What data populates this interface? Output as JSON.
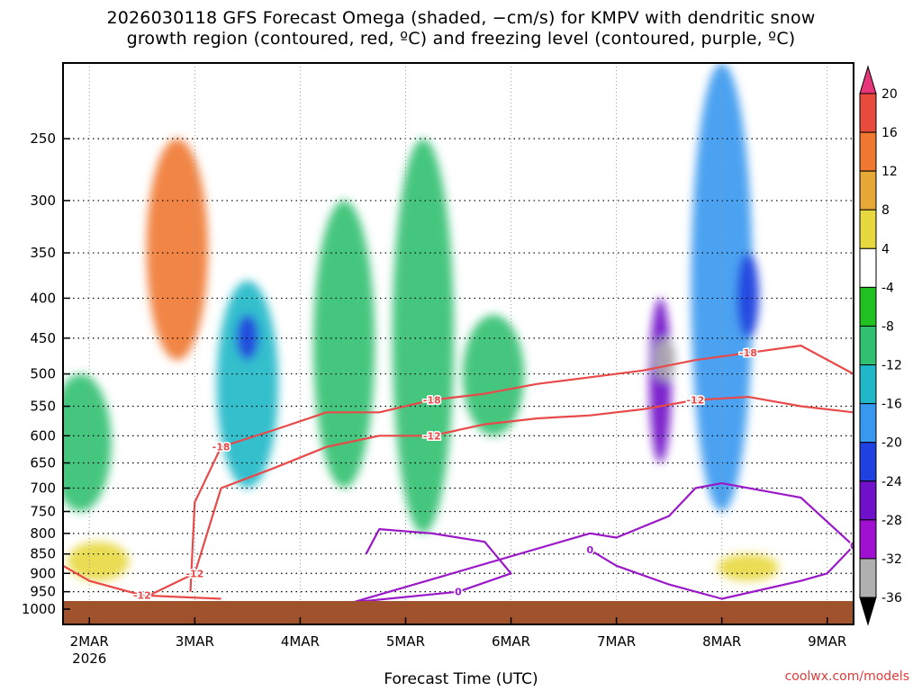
{
  "chart_data": {
    "type": "heatmap",
    "title": "2026030118 GFS Forecast Omega (shaded, −cm/s) for KMPV with dendritic snow",
    "subtitle": "growth region (contoured, red, ºC) and freezing level (contoured, purple, ºC)",
    "xlabel": "Forecast Time (UTC)",
    "ylabel": "",
    "y_axis": {
      "scale": "log",
      "reversed": true,
      "range": [
        200,
        1000
      ],
      "ticks": [
        250,
        300,
        350,
        400,
        450,
        500,
        550,
        600,
        650,
        700,
        750,
        800,
        850,
        900,
        950,
        1000
      ]
    },
    "x_axis": {
      "range": [
        "2026-03-01 18",
        "2026-03-09 06"
      ],
      "ticks": [
        {
          "label": "2MAR",
          "sub": "2026",
          "time": "2026-03-02 00"
        },
        {
          "label": "3MAR",
          "sub": "",
          "time": "2026-03-03 00"
        },
        {
          "label": "4MAR",
          "sub": "",
          "time": "2026-03-04 00"
        },
        {
          "label": "5MAR",
          "sub": "",
          "time": "2026-03-05 00"
        },
        {
          "label": "6MAR",
          "sub": "",
          "time": "2026-03-06 00"
        },
        {
          "label": "7MAR",
          "sub": "",
          "time": "2026-03-07 00"
        },
        {
          "label": "8MAR",
          "sub": "",
          "time": "2026-03-08 00"
        },
        {
          "label": "9MAR",
          "sub": "",
          "time": "2026-03-09 00"
        }
      ]
    },
    "grid": true,
    "colorbar": {
      "placement": "right",
      "levels": [
        20,
        16,
        12,
        8,
        4,
        -4,
        -8,
        -12,
        -16,
        -20,
        -24,
        -28,
        -32,
        -36
      ],
      "colors": [
        "#e8367a",
        "#e84a3c",
        "#f07830",
        "#e8a838",
        "#e8d840",
        "#ffffff",
        "#20c020",
        "#30c070",
        "#20b8c8",
        "#3898f0",
        "#2040e0",
        "#7010c8",
        "#a010d0",
        "#b0b0b0",
        "#000000"
      ]
    },
    "shading_regions": [
      {
        "t": "2026-03-01 22",
        "p": [
          500,
          750
        ],
        "omega": -10
      },
      {
        "t": "2026-03-03 12",
        "p": [
          380,
          700
        ],
        "omega": -16
      },
      {
        "t": "2026-03-03 12",
        "p": [
          420,
          480
        ],
        "omega": -22
      },
      {
        "t": "2026-03-04 10",
        "p": [
          300,
          700
        ],
        "omega": -9
      },
      {
        "t": "2026-03-05 04",
        "p": [
          250,
          800
        ],
        "omega": -9
      },
      {
        "t": "2026-03-05 20",
        "p": [
          420,
          600
        ],
        "omega": -12
      },
      {
        "t": "2026-03-07 10",
        "p": [
          400,
          650
        ],
        "omega": -28
      },
      {
        "t": "2026-03-07 11",
        "p": [
          450,
          510
        ],
        "omega": -36
      },
      {
        "t": "2026-03-08 00",
        "p": [
          200,
          750
        ],
        "omega": -18
      },
      {
        "t": "2026-03-08 06",
        "p": [
          350,
          450
        ],
        "omega": -24
      },
      {
        "t": "2026-03-02 20",
        "p": [
          250,
          480
        ],
        "omega": 12
      },
      {
        "t": "2026-03-02 02",
        "p": [
          820,
          920
        ],
        "omega": 6
      },
      {
        "t": "2026-03-08 06",
        "p": [
          850,
          920
        ],
        "omega": 6
      }
    ],
    "contours": [
      {
        "name": "-18",
        "color": "#e84a4a",
        "label": "-18",
        "label_points": [
          2,
          6,
          12
        ],
        "points": [
          [
            "2026-03-02 23",
            950
          ],
          [
            "2026-03-03 00",
            730
          ],
          [
            "2026-03-03 06",
            620
          ],
          [
            "2026-03-03 18",
            590
          ],
          [
            "2026-03-04 06",
            560
          ],
          [
            "2026-03-04 18",
            560
          ],
          [
            "2026-03-05 06",
            540
          ],
          [
            "2026-03-05 18",
            530
          ],
          [
            "2026-03-06 06",
            515
          ],
          [
            "2026-03-06 18",
            505
          ],
          [
            "2026-03-07 06",
            495
          ],
          [
            "2026-03-07 18",
            480
          ],
          [
            "2026-03-08 06",
            470
          ],
          [
            "2026-03-08 18",
            460
          ],
          [
            "2026-03-09 06",
            500
          ]
        ]
      },
      {
        "name": "-12",
        "color": "#e84a4a",
        "label": "-12",
        "label_points": [
          1,
          6,
          11
        ],
        "points": [
          [
            "2026-03-02 12",
            970
          ],
          [
            "2026-03-03 00",
            900
          ],
          [
            "2026-03-03 06",
            700
          ],
          [
            "2026-03-03 18",
            660
          ],
          [
            "2026-03-04 06",
            620
          ],
          [
            "2026-03-04 18",
            600
          ],
          [
            "2026-03-05 06",
            600
          ],
          [
            "2026-03-05 18",
            580
          ],
          [
            "2026-03-06 06",
            570
          ],
          [
            "2026-03-06 18",
            565
          ],
          [
            "2026-03-07 06",
            555
          ],
          [
            "2026-03-07 18",
            540
          ],
          [
            "2026-03-08 06",
            535
          ],
          [
            "2026-03-08 18",
            550
          ],
          [
            "2026-03-09 06",
            560
          ]
        ]
      },
      {
        "name": "-12 surface",
        "color": "#e84a4a",
        "label": "-12",
        "label_points": [
          2
        ],
        "points": [
          [
            "2026-03-01 18",
            880
          ],
          [
            "2026-03-02 00",
            920
          ],
          [
            "2026-03-02 12",
            960
          ],
          [
            "2026-03-02 21",
            965
          ],
          [
            "2026-03-03 06",
            970
          ]
        ]
      },
      {
        "name": "0 freezing",
        "color": "#9a18c8",
        "label": "0",
        "label_points": [
          5,
          13,
          19
        ],
        "points": [
          [
            "2026-03-04 15",
            850
          ],
          [
            "2026-03-04 18",
            790
          ],
          [
            "2026-03-05 06",
            800
          ],
          [
            "2026-03-05 18",
            820
          ],
          [
            "2026-03-06 00",
            900
          ],
          [
            "2026-03-05 12",
            950
          ],
          [
            "2026-03-04 12",
            980
          ],
          [
            "2026-03-06 18",
            800
          ],
          [
            "2026-03-07 00",
            810
          ],
          [
            "2026-03-07 12",
            760
          ],
          [
            "2026-03-07 18",
            700
          ],
          [
            "2026-03-08 00",
            690
          ],
          [
            "2026-03-08 18",
            720
          ],
          [
            "2026-03-09 06",
            830
          ],
          [
            "2026-03-09 00",
            900
          ],
          [
            "2026-03-08 18",
            920
          ],
          [
            "2026-03-08 00",
            970
          ],
          [
            "2026-03-07 12",
            930
          ],
          [
            "2026-03-07 00",
            880
          ],
          [
            "2026-03-06 18",
            840
          ]
        ]
      }
    ]
  },
  "page": {
    "title_line1": "2026030118 GFS Forecast Omega (shaded, −cm/s) for KMPV with dendritic snow",
    "title_line2": "growth region (contoured, red, ºC) and freezing level (contoured, purple, ºC)",
    "xlabel": "Forecast Time (UTC)",
    "credit": "coolwx.com/models"
  }
}
